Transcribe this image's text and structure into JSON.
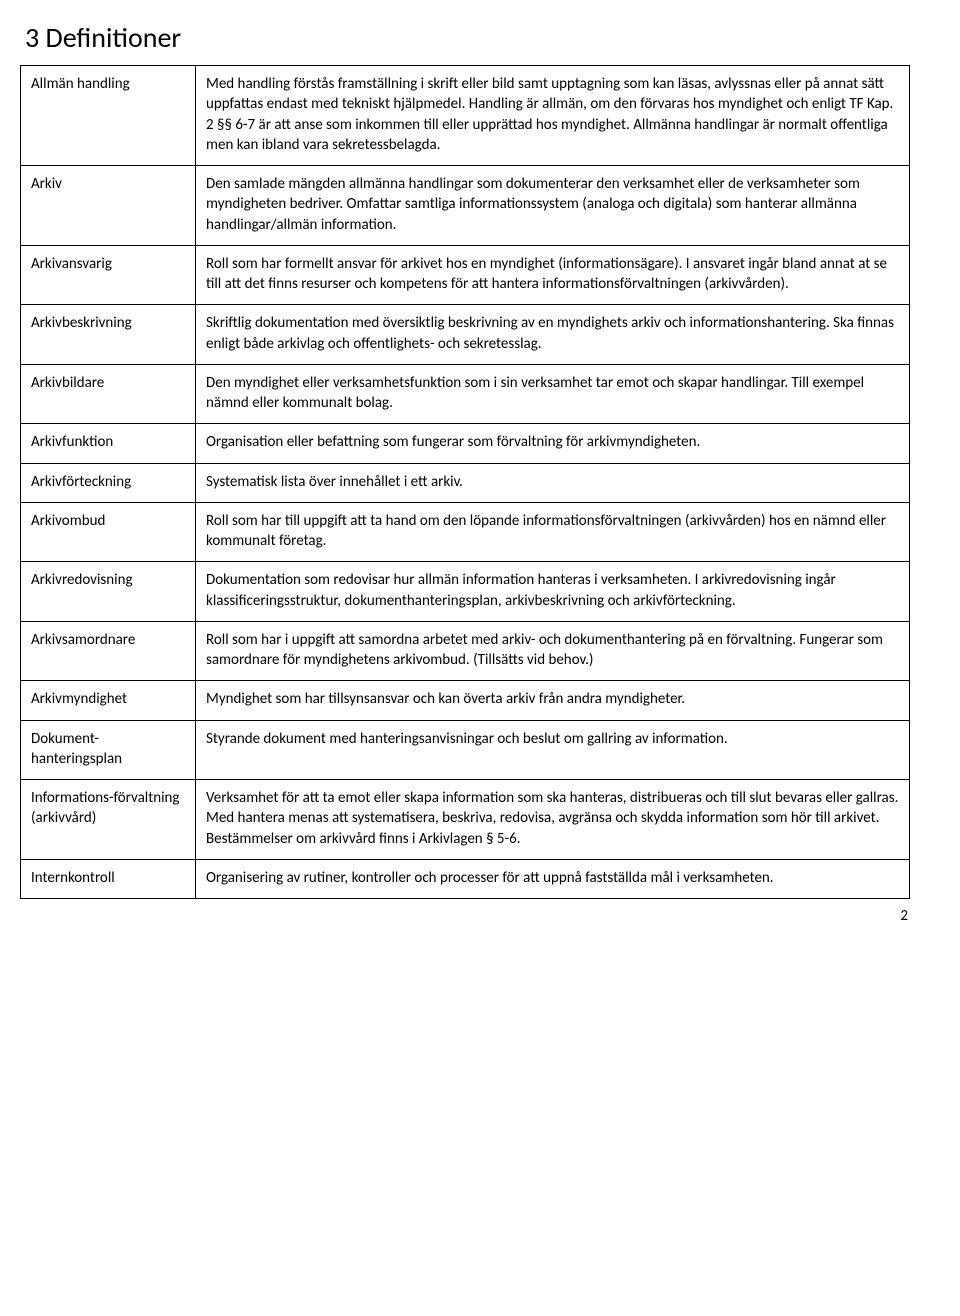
{
  "heading": "3   Definitioner",
  "page_number": "2",
  "rows": [
    {
      "term": "Allmän handling",
      "def": "Med handling förstås framställning i skrift eller bild samt upptagning som kan läsas, avlyssnas eller på annat sätt uppfattas endast med tekniskt hjälpmedel. Handling är allmän, om den förvaras hos myndighet och enligt TF Kap. 2 §§ 6-7 är att anse som inkommen till eller upprättad hos myndighet. Allmänna handlingar är normalt offentliga men kan ibland vara sekretessbelagda."
    },
    {
      "term": "Arkiv",
      "def": "Den samlade mängden allmänna handlingar som dokumenterar den verksamhet eller de verksamheter som myndigheten bedriver. Omfattar samtliga informationssystem (analoga och digitala) som hanterar allmänna handlingar/allmän information."
    },
    {
      "term": "Arkivansvarig",
      "def": "Roll som har formellt ansvar för arkivet hos en myndighet (informationsägare). I ansvaret ingår bland annat at se till att det finns resurser och kompetens för att hantera informationsförvaltningen (arkivvården)."
    },
    {
      "term": "Arkivbeskrivning",
      "def": "Skriftlig dokumentation med översiktlig beskrivning av en myndighets arkiv och informationshantering. Ska finnas enligt både arkivlag och offentlighets- och sekretesslag."
    },
    {
      "term": "Arkivbildare",
      "def": "Den myndighet eller verksamhetsfunktion som i sin verksamhet tar emot och skapar handlingar. Till exempel nämnd eller kommunalt bolag."
    },
    {
      "term": "Arkivfunktion",
      "def": "Organisation eller befattning som fungerar som förvaltning för arkivmyndigheten."
    },
    {
      "term": "Arkivförteckning",
      "def": "Systematisk lista över innehållet i ett arkiv."
    },
    {
      "term": "Arkivombud",
      "def": "Roll som har till uppgift att ta hand om den löpande informationsförvaltningen (arkivvården) hos en nämnd eller kommunalt företag."
    },
    {
      "term": "Arkivredovisning",
      "def": "Dokumentation som redovisar hur allmän information hanteras i verksamheten. I arkivredovisning ingår klassificeringsstruktur, dokumenthanteringsplan, arkivbeskrivning och arkivförteckning."
    },
    {
      "term": "Arkivsamordnare",
      "def": "Roll som har i uppgift att samordna arbetet med arkiv- och dokumenthantering på en förvaltning. Fungerar som samordnare för myndighetens arkivombud. (Tillsätts vid behov.)"
    },
    {
      "term": "Arkivmyndighet",
      "def": "Myndighet som har tillsynsansvar och kan överta arkiv från andra myndigheter."
    },
    {
      "term": "Dokument-hanteringsplan",
      "def": "Styrande dokument med hanteringsanvisningar och beslut om gallring av information."
    },
    {
      "term": "Informations-förvaltning (arkivvård)",
      "def": "Verksamhet för att ta emot eller skapa information som ska hanteras, distribueras och till slut bevaras eller gallras. Med hantera menas att systematisera, beskriva, redovisa, avgränsa och skydda information som hör till arkivet. Bestämmelser om arkivvård finns i Arkivlagen § 5-6."
    },
    {
      "term": "Internkontroll",
      "def": "Organisering av rutiner, kontroller och processer för att uppnå fastställda mål i verksamheten."
    }
  ]
}
